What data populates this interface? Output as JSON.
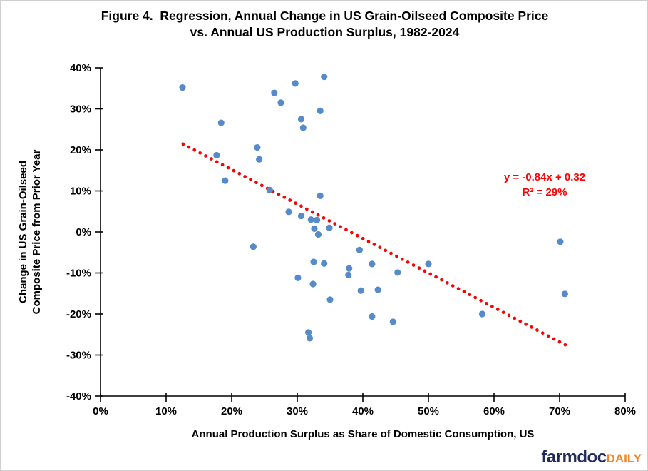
{
  "title": {
    "line1": "Figure 4.  Regression, Annual Change in US Grain-Oilseed Composite Price",
    "line2": "vs. Annual US Production Surplus, 1982-2024"
  },
  "chart_data": {
    "type": "scatter",
    "title": "Figure 4. Regression, Annual Change in US Grain-Oilseed Composite Price vs. Annual US Production Surplus, 1982-2024",
    "xlabel": "Annual Production Surplus as Share of Domestic Consumption, US",
    "ylabel_line1": "Change in US Grain-Oilseed",
    "ylabel_line2": "Composite Price from Prior Year",
    "xlim": [
      0,
      80
    ],
    "ylim": [
      -40,
      40
    ],
    "x_ticks": [
      "0%",
      "10%",
      "20%",
      "30%",
      "40%",
      "50%",
      "60%",
      "70%",
      "80%"
    ],
    "y_ticks": [
      "40%",
      "30%",
      "20%",
      "10%",
      "0%",
      "-10%",
      "-20%",
      "-30%",
      "-40%"
    ],
    "grid": false,
    "legend": "none",
    "points": [
      [
        12.5,
        35.2
      ],
      [
        34.1,
        37.8
      ],
      [
        29.7,
        36.2
      ],
      [
        26.5,
        33.9
      ],
      [
        27.5,
        31.5
      ],
      [
        33.5,
        29.5
      ],
      [
        18.4,
        26.6
      ],
      [
        30.6,
        27.5
      ],
      [
        30.9,
        25.4
      ],
      [
        23.9,
        20.6
      ],
      [
        17.7,
        18.7
      ],
      [
        24.2,
        17.7
      ],
      [
        19.0,
        12.5
      ],
      [
        25.8,
        10.2
      ],
      [
        33.5,
        8.8
      ],
      [
        28.7,
        4.9
      ],
      [
        30.6,
        3.9
      ],
      [
        32.1,
        3.0
      ],
      [
        33.0,
        2.9
      ],
      [
        32.6,
        0.8
      ],
      [
        34.9,
        1.0
      ],
      [
        33.2,
        -0.6
      ],
      [
        23.3,
        -3.6
      ],
      [
        32.5,
        -7.3
      ],
      [
        34.1,
        -7.7
      ],
      [
        37.9,
        -8.9
      ],
      [
        37.8,
        -10.5
      ],
      [
        30.1,
        -11.2
      ],
      [
        32.4,
        -12.7
      ],
      [
        39.5,
        -4.4
      ],
      [
        41.4,
        -7.8
      ],
      [
        45.3,
        -9.9
      ],
      [
        39.7,
        -14.3
      ],
      [
        42.3,
        -14.1
      ],
      [
        35.0,
        -16.5
      ],
      [
        41.4,
        -20.6
      ],
      [
        44.6,
        -21.9
      ],
      [
        31.7,
        -24.5
      ],
      [
        31.9,
        -25.9
      ],
      [
        50.0,
        -7.8
      ],
      [
        58.2,
        -20.0
      ],
      [
        70.1,
        -2.4
      ],
      [
        70.8,
        -15.1
      ]
    ],
    "regression": {
      "slope": -0.84,
      "intercept": 0.32,
      "x_start": 12.6,
      "x_end": 70.9,
      "equation_line1": "y = -0.84x + 0.32",
      "equation_line2": "R² = 29%"
    },
    "point_color": "#568BC9",
    "line_color": "#FF0000"
  },
  "footer": {
    "brand_primary": "farmdoc",
    "brand_secondary": "DAILY",
    "brand_primary_color": "#1F2B5B",
    "brand_secondary_color": "#F58220"
  }
}
